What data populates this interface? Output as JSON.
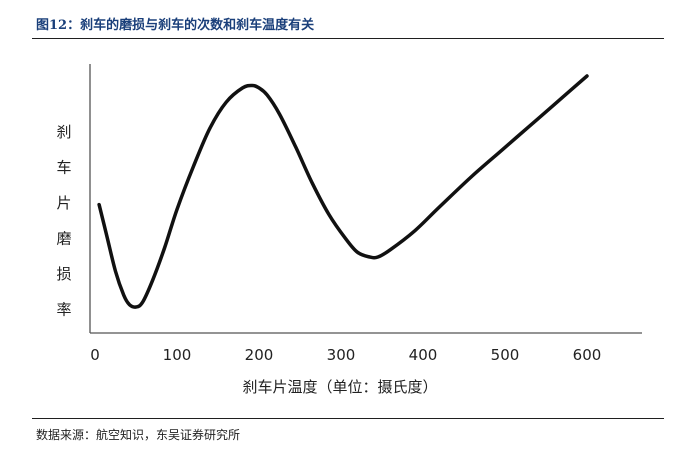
{
  "figure": {
    "title": "图12：刹车的磨损与刹车的次数和刹车温度有关",
    "source": "数据来源：航空知识，东吴证券研究所"
  },
  "chart_data": {
    "type": "line",
    "title": "",
    "xlabel": "刹车片温度（单位：摄氏度）",
    "ylabel": "刹车片磨损率",
    "xlim": [
      0,
      650
    ],
    "ylim": [
      0,
      10
    ],
    "xticks": [
      0,
      100,
      200,
      300,
      400,
      500,
      600
    ],
    "yticks_shown": false,
    "grid": false,
    "legend": "none",
    "colors": {
      "line": "#111111",
      "axis": "#555555"
    },
    "series": [
      {
        "x": [
          5,
          15,
          25,
          35,
          42,
          50,
          58,
          70,
          85,
          100,
          120,
          140,
          160,
          180,
          192,
          200,
          210,
          225,
          245,
          265,
          285,
          305,
          320,
          335,
          345,
          360,
          390,
          420,
          460,
          500,
          540,
          570,
          600
        ],
        "y": [
          4.7,
          3.3,
          1.9,
          0.9,
          0.5,
          0.4,
          0.6,
          1.5,
          2.9,
          4.5,
          6.3,
          7.9,
          9.0,
          9.6,
          9.7,
          9.6,
          9.3,
          8.5,
          7.1,
          5.6,
          4.3,
          3.3,
          2.7,
          2.5,
          2.5,
          2.8,
          3.6,
          4.6,
          5.9,
          7.1,
          8.3,
          9.2,
          10.1
        ]
      }
    ]
  }
}
